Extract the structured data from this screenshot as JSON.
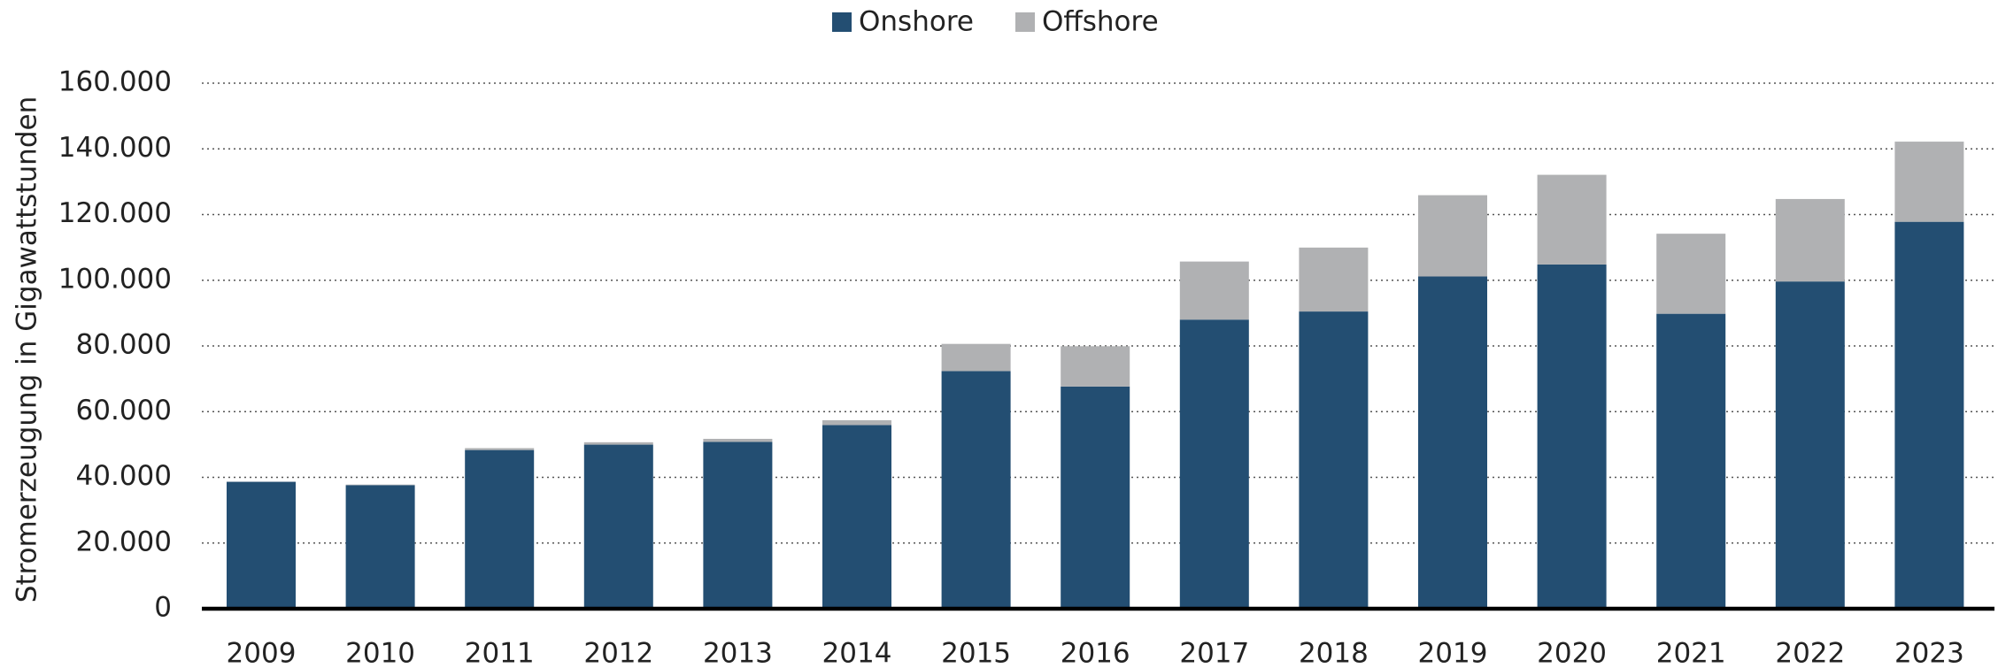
{
  "chart_data": {
    "type": "stacked_bar",
    "y_label": "Stromerzeugung in Gigawattstunden",
    "categories": [
      "2009",
      "2010",
      "2011",
      "2012",
      "2013",
      "2014",
      "2015",
      "2016",
      "2017",
      "2018",
      "2019",
      "2020",
      "2021",
      "2022",
      "2023"
    ],
    "series": [
      {
        "name": "Onshore",
        "color": "#234e72",
        "values": [
          38639,
          37619,
          48314,
          49949,
          50803,
          55908,
          72340,
          67650,
          88018,
          90484,
          101150,
          104796,
          89795,
          99625,
          117800
        ]
      },
      {
        "name": "Offshore",
        "color": "#b0b1b3",
        "values": [
          38,
          174,
          577,
          732,
          918,
          1471,
          8284,
          12274,
          17675,
          19467,
          24744,
          27306,
          24373,
          25110,
          24400
        ]
      }
    ],
    "ylim": [
      0,
      160000
    ],
    "yticks": [
      0,
      {
        "value": 20000,
        "label": "20.000"
      },
      {
        "value": 40000,
        "label": "40.000"
      },
      {
        "value": 60000,
        "label": "60.000"
      },
      {
        "value": 80000,
        "label": "80.000"
      },
      {
        "value": 100000,
        "label": "100.000"
      },
      {
        "value": 120000,
        "label": "120.000"
      },
      {
        "value": 140000,
        "label": "140.000"
      },
      {
        "value": 160000,
        "label": "160.000"
      }
    ],
    "grid": true,
    "legend": "top"
  }
}
